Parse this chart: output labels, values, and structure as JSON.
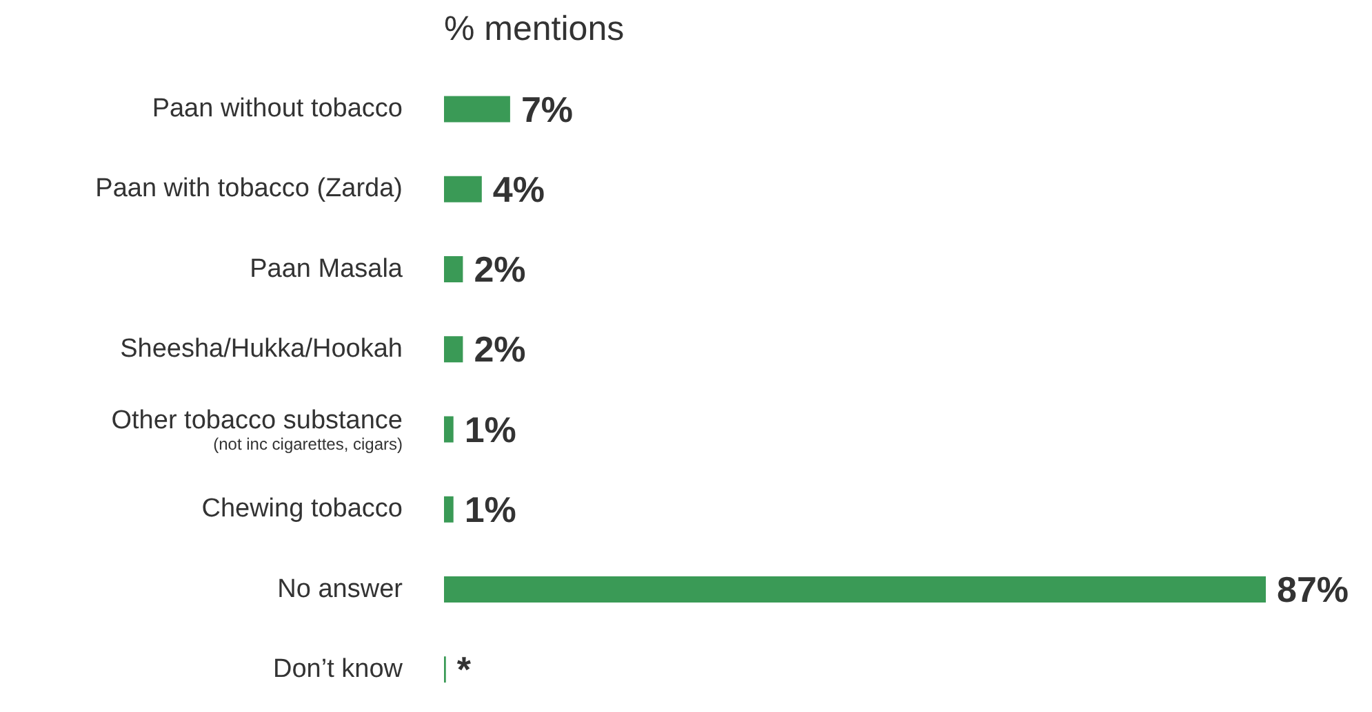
{
  "chart_data": {
    "type": "bar",
    "orientation": "horizontal",
    "title": "% mentions",
    "categories": [
      "Paan without tobacco",
      "Paan with tobacco (Zarda)",
      "Paan Masala",
      "Sheesha/Hukka/Hookah",
      "Other tobacco substance\n(not inc cigarettes, cigars)",
      "Chewing tobacco",
      "No answer",
      "Don’t know"
    ],
    "values": [
      7,
      4,
      2,
      2,
      1,
      1,
      87,
      0.2
    ],
    "value_labels": [
      "7%",
      "4%",
      "2%",
      "2%",
      "1%",
      "1%",
      "87%",
      "*"
    ],
    "color": "#3a9a56"
  }
}
